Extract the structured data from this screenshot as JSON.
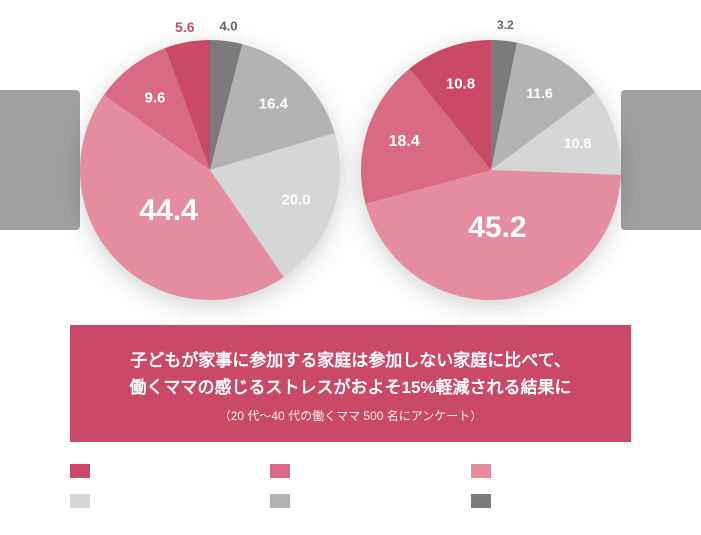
{
  "background_color": "#ffffff",
  "tab_color": "#a0a0a0",
  "pie_left": {
    "type": "pie",
    "start_at_top_clockwise": true,
    "slices": [
      {
        "value": 4.0,
        "color": "#7b7b7b",
        "label": "4.0",
        "label_color": "#666666",
        "label_fontsize": 13
      },
      {
        "value": 16.4,
        "color": "#b3b3b3",
        "label": "16.4",
        "label_color": "#ffffff",
        "label_fontsize": 15
      },
      {
        "value": 20.0,
        "color": "#d6d6d6",
        "label": "20.0",
        "label_color": "#ffffff",
        "label_fontsize": 15
      },
      {
        "value": 44.4,
        "color": "#e58ca0",
        "label": "44.4",
        "label_color": "#ffffff",
        "label_fontsize": 30
      },
      {
        "value": 9.6,
        "color": "#d96a84",
        "label": "9.6",
        "label_color": "#ffffff",
        "label_fontsize": 15
      },
      {
        "value": 5.6,
        "color": "#c94966",
        "label": "5.6",
        "label_color": "#c94966",
        "label_fontsize": 14
      }
    ]
  },
  "pie_right": {
    "type": "pie",
    "start_at_top_clockwise": true,
    "slices": [
      {
        "value": 3.2,
        "color": "#7b7b7b",
        "label": "3.2",
        "label_color": "#666666",
        "label_fontsize": 12
      },
      {
        "value": 11.6,
        "color": "#b3b3b3",
        "label": "11.6",
        "label_color": "#ffffff",
        "label_fontsize": 14
      },
      {
        "value": 10.8,
        "color": "#d6d6d6",
        "label": "10.8",
        "label_color": "#ffffff",
        "label_fontsize": 14
      },
      {
        "value": 45.2,
        "color": "#e58ca0",
        "label": "45.2",
        "label_color": "#ffffff",
        "label_fontsize": 30
      },
      {
        "value": 18.4,
        "color": "#d96a84",
        "label": "18.4",
        "label_color": "#ffffff",
        "label_fontsize": 16
      },
      {
        "value": 10.8,
        "color": "#c94966",
        "label": "10.8",
        "label_color": "#ffffff",
        "label_fontsize": 15
      }
    ]
  },
  "caption": {
    "background": "#c94966",
    "line1": "子どもが家事に参加する家庭は参加しない家庭に比べて、",
    "line2": "働くママの感じるストレスがおよそ15%軽減される結果に",
    "sub": "（20 代〜40 代の働くママ 500 名にアンケート）"
  },
  "legend": {
    "items": [
      {
        "color": "#c94966",
        "label": ""
      },
      {
        "color": "#d96a84",
        "label": ""
      },
      {
        "color": "#e58ca0",
        "label": ""
      },
      {
        "color": "#d6d6d6",
        "label": ""
      },
      {
        "color": "#b3b3b3",
        "label": ""
      },
      {
        "color": "#7b7b7b",
        "label": ""
      }
    ]
  }
}
